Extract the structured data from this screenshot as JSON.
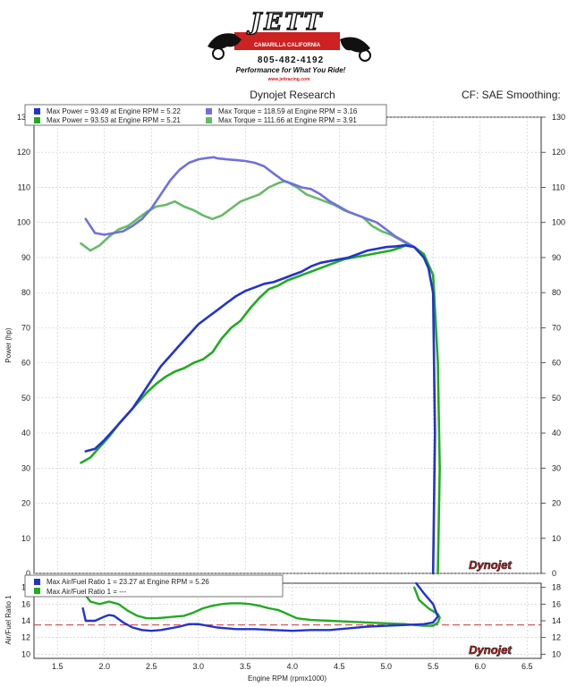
{
  "logo": {
    "name": "JETT",
    "location": "CAMARILLA CALIFORNIA",
    "phone": "805-482-4192",
    "slogan": "Performance for What You Ride!",
    "website": "www.jettracing.com"
  },
  "header": {
    "title": "Dynojet Research",
    "cf": "CF: SAE Smoothing:"
  },
  "brand_mark": "Dynojet",
  "colors": {
    "run1_power": "#2233cc",
    "run1_torque": "#7070dd",
    "run2_power": "#22aa22",
    "run2_torque": "#66bb66",
    "afr_reference": "#cc3333"
  },
  "chart_data": [
    {
      "type": "line",
      "title": "",
      "xlabel": "Engine RPM (rpmx1000)",
      "ylabel": "Power (hp)",
      "xlim": [
        1.25,
        6.65
      ],
      "ylim": [
        0,
        130
      ],
      "xticks": [
        "1.5",
        "2.0",
        "2.5",
        "3.0",
        "3.5",
        "4.0",
        "4.5",
        "5.0",
        "5.5",
        "6.0",
        "6.5"
      ],
      "yticks": [
        "0",
        "10",
        "20",
        "30",
        "40",
        "50",
        "60",
        "70",
        "80",
        "90",
        "100",
        "110",
        "120",
        "130"
      ],
      "grid": true,
      "legend_position": "top-left",
      "legend": [
        "Max Power = 93.49 at Engine RPM = 5.22",
        "Max Torque = 118.59 at Engine RPM = 3.16",
        "Max Power = 93.53 at Engine RPM = 5.21",
        "Max Torque = 111.66 at Engine RPM = 3.91"
      ],
      "series": [
        {
          "name": "Max Power = 93.49 at Engine RPM = 5.22",
          "color": "#2233cc",
          "x": [
            1.8,
            1.9,
            2.0,
            2.1,
            2.2,
            2.3,
            2.4,
            2.5,
            2.6,
            2.7,
            2.8,
            2.9,
            3.0,
            3.1,
            3.2,
            3.3,
            3.4,
            3.5,
            3.6,
            3.7,
            3.8,
            3.9,
            4.0,
            4.1,
            4.2,
            4.3,
            4.4,
            4.5,
            4.6,
            4.7,
            4.8,
            4.9,
            5.0,
            5.1,
            5.2,
            5.3,
            5.4,
            5.45,
            5.5,
            5.52,
            5.5
          ],
          "y": [
            34.8,
            35.5,
            38,
            41,
            44,
            47,
            51,
            55,
            59,
            62,
            65,
            68,
            71,
            73,
            75,
            77,
            79,
            80.5,
            81.5,
            82.5,
            83,
            84,
            85,
            86,
            87.5,
            88.5,
            89,
            89.5,
            90,
            91,
            92,
            92.5,
            93,
            93.2,
            93.49,
            93,
            90,
            87,
            80,
            40,
            0
          ]
        },
        {
          "name": "Max Torque = 118.59 at Engine RPM = 3.16",
          "color": "#7070dd",
          "x": [
            1.8,
            1.9,
            2.0,
            2.1,
            2.2,
            2.3,
            2.4,
            2.5,
            2.6,
            2.7,
            2.8,
            2.9,
            3.0,
            3.1,
            3.16,
            3.2,
            3.3,
            3.4,
            3.5,
            3.6,
            3.7,
            3.8,
            3.9,
            4.0,
            4.1,
            4.2,
            4.3,
            4.4,
            4.5,
            4.6,
            4.7,
            4.8,
            4.9,
            5.0,
            5.1,
            5.2,
            5.3
          ],
          "y": [
            101,
            97,
            96.5,
            97,
            97.5,
            99,
            101,
            104,
            108,
            112,
            115,
            117,
            118,
            118.4,
            118.59,
            118.3,
            118,
            117.8,
            117.5,
            117,
            116,
            114,
            112,
            111,
            110,
            109.5,
            108,
            106,
            104.5,
            103,
            102,
            101,
            100,
            98,
            96,
            94.5,
            93
          ]
        },
        {
          "name": "Max Power = 93.53 at Engine RPM = 5.21",
          "color": "#22aa22",
          "x": [
            1.75,
            1.85,
            1.95,
            2.05,
            2.15,
            2.25,
            2.35,
            2.45,
            2.55,
            2.65,
            2.75,
            2.85,
            2.95,
            3.05,
            3.15,
            3.25,
            3.35,
            3.45,
            3.55,
            3.65,
            3.75,
            3.85,
            3.95,
            4.05,
            4.15,
            4.25,
            4.35,
            4.45,
            4.55,
            4.65,
            4.75,
            4.85,
            4.95,
            5.05,
            5.15,
            5.21,
            5.3,
            5.4,
            5.5,
            5.55,
            5.57,
            5.55
          ],
          "y": [
            31.5,
            33,
            36,
            39,
            42.5,
            45.5,
            48.5,
            51.5,
            54,
            56,
            57.5,
            58.5,
            60,
            61,
            63,
            67,
            70,
            72,
            75.5,
            78.5,
            81,
            82,
            83.5,
            84.5,
            85.5,
            86.5,
            87.5,
            88.5,
            89.5,
            90,
            90.5,
            91,
            91.5,
            92,
            92.8,
            93.53,
            93,
            91,
            85,
            60,
            30,
            0
          ]
        },
        {
          "name": "Max Torque = 111.66 at Engine RPM = 3.91",
          "color": "#66bb66",
          "x": [
            1.75,
            1.85,
            1.95,
            2.05,
            2.15,
            2.25,
            2.35,
            2.45,
            2.55,
            2.65,
            2.75,
            2.85,
            2.95,
            3.05,
            3.15,
            3.25,
            3.35,
            3.45,
            3.55,
            3.65,
            3.75,
            3.85,
            3.91,
            3.95,
            4.05,
            4.15,
            4.25,
            4.35,
            4.45,
            4.55,
            4.65,
            4.75,
            4.85,
            4.95,
            5.05,
            5.15,
            5.25
          ],
          "y": [
            94,
            92,
            93.5,
            96,
            98,
            99,
            101,
            103,
            104.5,
            105,
            106,
            104.5,
            103.5,
            102,
            101,
            102,
            104,
            106,
            107,
            108,
            110,
            111.2,
            111.66,
            111.5,
            110,
            108,
            107,
            106,
            105,
            103.5,
            102.5,
            101.5,
            99,
            97.5,
            96.5,
            95,
            93.5
          ]
        }
      ]
    },
    {
      "type": "line",
      "title": "",
      "xlabel": "Engine RPM (rpmx1000)",
      "ylabel": "Air/Fuel Ratio 1",
      "xlim": [
        1.25,
        6.65
      ],
      "ylim": [
        9.5,
        18.5
      ],
      "xticks": [
        "1.5",
        "2.0",
        "2.5",
        "3.0",
        "3.5",
        "4.0",
        "4.5",
        "5.0",
        "5.5",
        "6.0",
        "6.5"
      ],
      "yticks": [
        "10",
        "12",
        "14",
        "16",
        "18"
      ],
      "reference_line": 13.5,
      "legend_position": "top-left",
      "legend": [
        "Max Air/Fuel Ratio 1 = 23.27 at Engine RPM = 5.26",
        "Max Air/Fuel Ratio 1 = ---"
      ],
      "series": [
        {
          "name": "Max Air/Fuel Ratio 1 = 23.27 at Engine RPM = 5.26",
          "color": "#2233cc",
          "x": [
            1.77,
            1.8,
            1.9,
            2.0,
            2.05,
            2.1,
            2.2,
            2.3,
            2.4,
            2.5,
            2.6,
            2.7,
            2.8,
            2.9,
            3.0,
            3.1,
            3.2,
            3.4,
            3.6,
            3.8,
            4.0,
            4.2,
            4.4,
            4.6,
            4.8,
            5.0,
            5.2,
            5.4,
            5.5,
            5.55,
            5.5,
            5.4,
            5.32
          ],
          "y": [
            15.5,
            14,
            14,
            14.5,
            14.7,
            14.6,
            13.8,
            13.2,
            12.9,
            12.8,
            12.9,
            13.1,
            13.3,
            13.6,
            13.6,
            13.4,
            13.2,
            13.0,
            13.0,
            12.9,
            12.8,
            12.9,
            12.9,
            13.1,
            13.3,
            13.4,
            13.5,
            13.6,
            13.8,
            14.5,
            16.0,
            17.3,
            18.5
          ]
        },
        {
          "name": "Max Air/Fuel Ratio 1 = ---",
          "color": "#22aa22",
          "x": [
            1.77,
            1.85,
            1.95,
            2.05,
            2.15,
            2.25,
            2.35,
            2.45,
            2.55,
            2.65,
            2.75,
            2.85,
            2.95,
            3.05,
            3.15,
            3.25,
            3.35,
            3.45,
            3.55,
            3.65,
            3.75,
            3.85,
            3.95,
            4.05,
            4.2,
            4.4,
            4.6,
            4.8,
            5.0,
            5.2,
            5.3,
            5.4,
            5.5,
            5.55,
            5.57,
            5.55,
            5.45,
            5.35,
            5.3
          ],
          "y": [
            17.5,
            16.3,
            16.0,
            16.3,
            16.0,
            15.2,
            14.6,
            14.3,
            14.3,
            14.4,
            14.5,
            14.6,
            15.0,
            15.5,
            15.8,
            16.0,
            16.1,
            16.1,
            16.0,
            15.8,
            15.5,
            15.3,
            14.8,
            14.3,
            14.1,
            14.0,
            13.9,
            13.8,
            13.7,
            13.6,
            13.5,
            13.4,
            13.4,
            13.8,
            14.4,
            14.8,
            15.5,
            16.5,
            18.0
          ]
        }
      ]
    }
  ]
}
